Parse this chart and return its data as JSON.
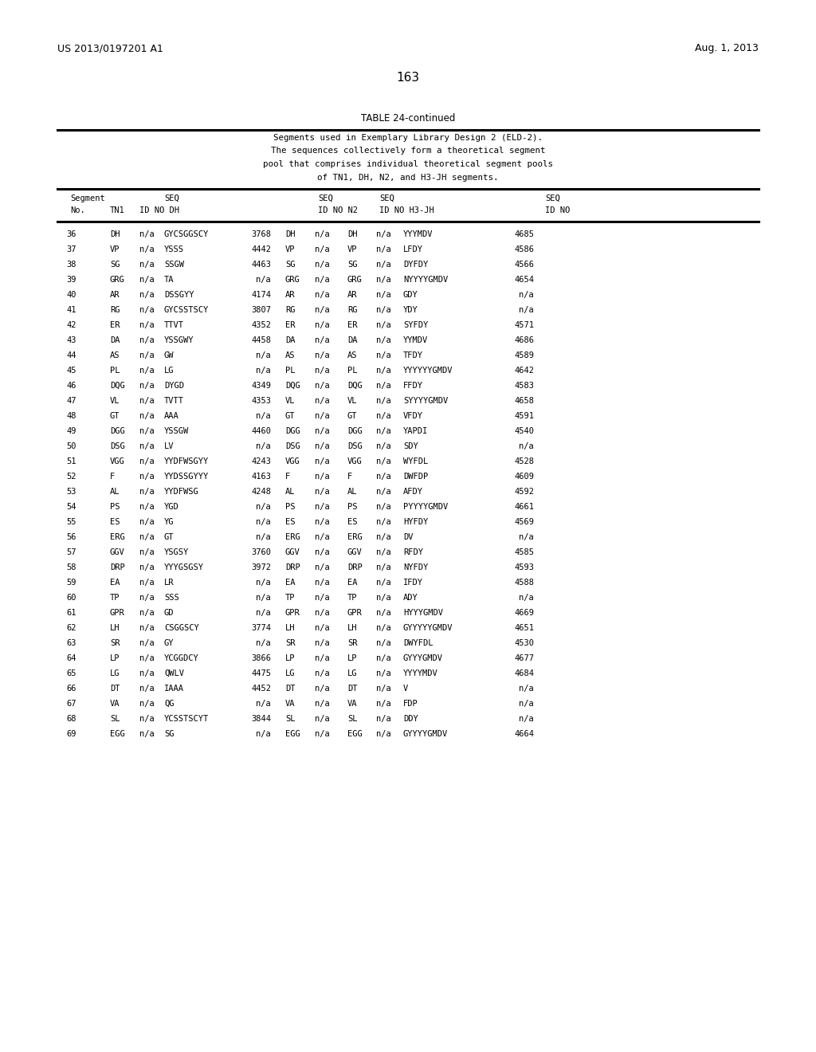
{
  "patent_left": "US 2013/0197201 A1",
  "patent_right": "Aug. 1, 2013",
  "page_number": "163",
  "table_title": "TABLE 24-continued",
  "caption_lines": [
    "Segments used in Exemplary Library Design 2 (ELD-2).",
    "The sequences collectively form a theoretical segment",
    "pool that comprises individual theoretical segment pools",
    "of TN1, DH, N2, and H3-JH segments."
  ],
  "rows": [
    [
      36,
      "DH",
      "n/a",
      "GYCSGGSCY",
      "3768",
      "DH",
      "n/a",
      "YYYMDV",
      "4685"
    ],
    [
      37,
      "VP",
      "n/a",
      "YSSS",
      "4442",
      "VP",
      "n/a",
      "LFDY",
      "4586"
    ],
    [
      38,
      "SG",
      "n/a",
      "SSGW",
      "4463",
      "SG",
      "n/a",
      "DYFDY",
      "4566"
    ],
    [
      39,
      "GRG",
      "n/a",
      "TA",
      "n/a",
      "GRG",
      "n/a",
      "NYYYYGMDV",
      "4654"
    ],
    [
      40,
      "AR",
      "n/a",
      "DSSGYY",
      "4174",
      "AR",
      "n/a",
      "GDY",
      "n/a"
    ],
    [
      41,
      "RG",
      "n/a",
      "GYCSSTSCY",
      "3807",
      "RG",
      "n/a",
      "YDY",
      "n/a"
    ],
    [
      42,
      "ER",
      "n/a",
      "TTVT",
      "4352",
      "ER",
      "n/a",
      "SYFDY",
      "4571"
    ],
    [
      43,
      "DA",
      "n/a",
      "YSSGWY",
      "4458",
      "DA",
      "n/a",
      "YYMDV",
      "4686"
    ],
    [
      44,
      "AS",
      "n/a",
      "GW",
      "n/a",
      "AS",
      "n/a",
      "TFDY",
      "4589"
    ],
    [
      45,
      "PL",
      "n/a",
      "LG",
      "n/a",
      "PL",
      "n/a",
      "YYYYYYGMDV",
      "4642"
    ],
    [
      46,
      "DQG",
      "n/a",
      "DYGD",
      "4349",
      "DQG",
      "n/a",
      "FFDY",
      "4583"
    ],
    [
      47,
      "VL",
      "n/a",
      "TVTT",
      "4353",
      "VL",
      "n/a",
      "SYYYYGMDV",
      "4658"
    ],
    [
      48,
      "GT",
      "n/a",
      "AAA",
      "n/a",
      "GT",
      "n/a",
      "VFDY",
      "4591"
    ],
    [
      49,
      "DGG",
      "n/a",
      "YSSGW",
      "4460",
      "DGG",
      "n/a",
      "YAPDI",
      "4540"
    ],
    [
      50,
      "DSG",
      "n/a",
      "LV",
      "n/a",
      "DSG",
      "n/a",
      "SDY",
      "n/a"
    ],
    [
      51,
      "VGG",
      "n/a",
      "YYDFWSGYY",
      "4243",
      "VGG",
      "n/a",
      "WYFDL",
      "4528"
    ],
    [
      52,
      "F",
      "n/a",
      "YYDSSGYYY",
      "4163",
      "F",
      "n/a",
      "DWFDP",
      "4609"
    ],
    [
      53,
      "AL",
      "n/a",
      "YYDFWSG",
      "4248",
      "AL",
      "n/a",
      "AFDY",
      "4592"
    ],
    [
      54,
      "PS",
      "n/a",
      "YGD",
      "n/a",
      "PS",
      "n/a",
      "PYYYYGMDV",
      "4661"
    ],
    [
      55,
      "ES",
      "n/a",
      "YG",
      "n/a",
      "ES",
      "n/a",
      "HYFDY",
      "4569"
    ],
    [
      56,
      "ERG",
      "n/a",
      "GT",
      "n/a",
      "ERG",
      "n/a",
      "DV",
      "n/a"
    ],
    [
      57,
      "GGV",
      "n/a",
      "YSGSY",
      "3760",
      "GGV",
      "n/a",
      "RFDY",
      "4585"
    ],
    [
      58,
      "DRP",
      "n/a",
      "YYYGSGSY",
      "3972",
      "DRP",
      "n/a",
      "NYFDY",
      "4593"
    ],
    [
      59,
      "EA",
      "n/a",
      "LR",
      "n/a",
      "EA",
      "n/a",
      "IFDY",
      "4588"
    ],
    [
      60,
      "TP",
      "n/a",
      "SSS",
      "n/a",
      "TP",
      "n/a",
      "ADY",
      "n/a"
    ],
    [
      61,
      "GPR",
      "n/a",
      "GD",
      "n/a",
      "GPR",
      "n/a",
      "HYYYGMDV",
      "4669"
    ],
    [
      62,
      "LH",
      "n/a",
      "CSGGSCY",
      "3774",
      "LH",
      "n/a",
      "GYYYYYGMDV",
      "4651"
    ],
    [
      63,
      "SR",
      "n/a",
      "GY",
      "n/a",
      "SR",
      "n/a",
      "DWYFDL",
      "4530"
    ],
    [
      64,
      "LP",
      "n/a",
      "YCGGDCY",
      "3866",
      "LP",
      "n/a",
      "GYYYGMDV",
      "4677"
    ],
    [
      65,
      "LG",
      "n/a",
      "QWLV",
      "4475",
      "LG",
      "n/a",
      "YYYYMDV",
      "4684"
    ],
    [
      66,
      "DT",
      "n/a",
      "IAAA",
      "4452",
      "DT",
      "n/a",
      "V",
      "n/a"
    ],
    [
      67,
      "VA",
      "n/a",
      "QG",
      "n/a",
      "VA",
      "n/a",
      "FDP",
      "n/a"
    ],
    [
      68,
      "SL",
      "n/a",
      "YCSSTSCYT",
      "3844",
      "SL",
      "n/a",
      "DDY",
      "n/a"
    ],
    [
      69,
      "EGG",
      "n/a",
      "SG",
      "n/a",
      "EGG",
      "n/a",
      "GYYYYGMDV",
      "4664"
    ]
  ],
  "bg_color": "#ffffff",
  "text_color": "#000000",
  "line_color": "#000000"
}
